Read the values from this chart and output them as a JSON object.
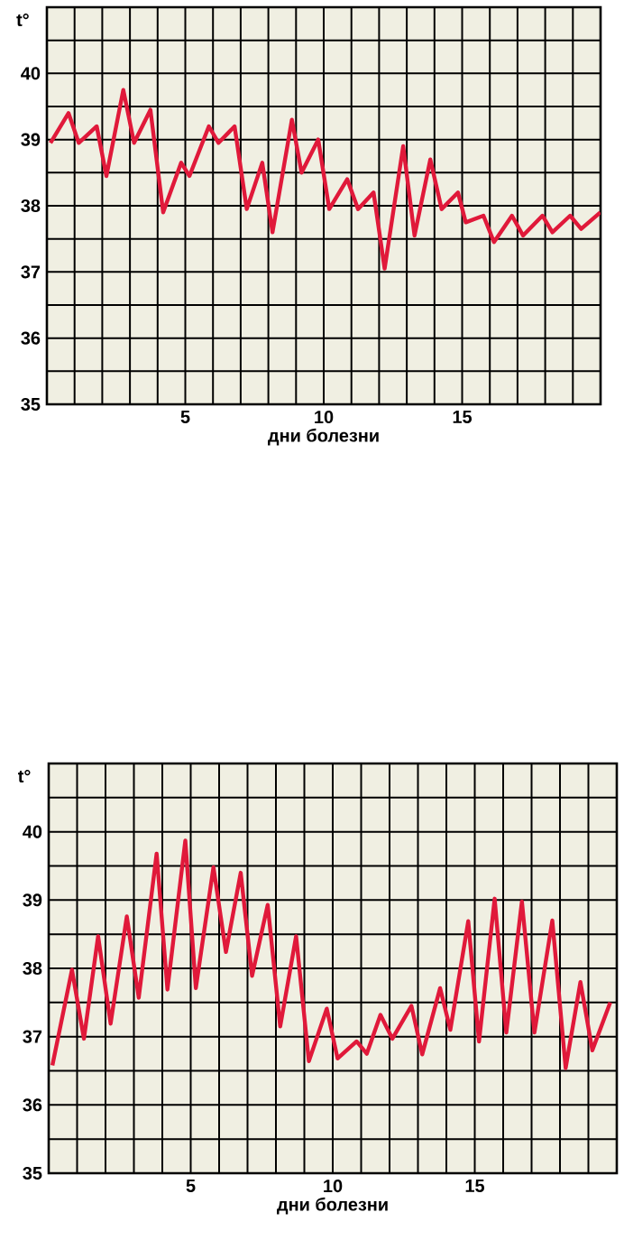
{
  "chart_data": [
    {
      "type": "line",
      "xlabel": "дни болезни",
      "ylabel": "t°",
      "color": "#e0193a",
      "grid": true,
      "xlim": [
        0,
        20
      ],
      "ylim": [
        35,
        41
      ],
      "xticks": [
        {
          "value": 1,
          "label": null
        },
        {
          "value": 2,
          "label": null
        },
        {
          "value": 3,
          "label": null
        },
        {
          "value": 4,
          "label": null
        },
        5,
        {
          "value": 6,
          "label": null
        },
        {
          "value": 7,
          "label": null
        },
        {
          "value": 8,
          "label": null
        },
        {
          "value": 9,
          "label": null
        },
        10,
        {
          "value": 11,
          "label": null
        },
        {
          "value": 12,
          "label": null
        },
        {
          "value": 13,
          "label": null
        },
        {
          "value": 14,
          "label": null
        },
        15,
        {
          "value": 16,
          "label": null
        },
        {
          "value": 17,
          "label": null
        },
        {
          "value": 18,
          "label": null
        },
        {
          "value": 19,
          "label": null
        }
      ],
      "yticks": [
        35,
        {
          "value": 35.5,
          "label": null
        },
        36,
        {
          "value": 36.5,
          "label": null
        },
        37,
        {
          "value": 37.5,
          "label": null
        },
        38,
        {
          "value": 38.5,
          "label": null
        },
        39,
        {
          "value": 39.5,
          "label": null
        },
        40,
        {
          "value": 40.5,
          "label": null
        }
      ],
      "x": [
        0.13,
        0.78,
        1.15,
        1.8,
        2.15,
        2.76,
        3.15,
        3.74,
        4.2,
        4.85,
        5.15,
        5.85,
        6.2,
        6.78,
        7.22,
        7.78,
        8.15,
        8.85,
        9.2,
        9.8,
        10.2,
        10.85,
        11.24,
        11.8,
        12.2,
        12.87,
        13.28,
        13.85,
        14.26,
        14.85,
        15.13,
        15.77,
        16.15,
        16.8,
        17.2,
        17.9,
        18.26,
        18.9,
        19.3,
        19.99
      ],
      "values": [
        38.95,
        39.4,
        38.95,
        39.2,
        38.45,
        39.75,
        38.95,
        39.45,
        37.9,
        38.65,
        38.45,
        39.2,
        38.95,
        39.2,
        37.95,
        38.65,
        37.6,
        39.3,
        38.5,
        39.0,
        37.95,
        38.4,
        37.95,
        38.2,
        37.05,
        38.9,
        37.55,
        38.7,
        37.95,
        38.2,
        37.75,
        37.85,
        37.45,
        37.85,
        37.55,
        37.85,
        37.6,
        37.85,
        37.65,
        37.9
      ]
    },
    {
      "type": "line",
      "xlabel": "дни болезни",
      "ylabel": "t°",
      "color": "#e0193a",
      "grid": true,
      "xlim": [
        0,
        20
      ],
      "ylim": [
        35,
        41
      ],
      "xticks": [
        {
          "value": 1,
          "label": null
        },
        {
          "value": 2,
          "label": null
        },
        {
          "value": 3,
          "label": null
        },
        {
          "value": 4,
          "label": null
        },
        5,
        {
          "value": 6,
          "label": null
        },
        {
          "value": 7,
          "label": null
        },
        {
          "value": 8,
          "label": null
        },
        {
          "value": 9,
          "label": null
        },
        10,
        {
          "value": 11,
          "label": null
        },
        {
          "value": 12,
          "label": null
        },
        {
          "value": 13,
          "label": null
        },
        {
          "value": 14,
          "label": null
        },
        15,
        {
          "value": 16,
          "label": null
        },
        {
          "value": 17,
          "label": null
        },
        {
          "value": 18,
          "label": null
        },
        {
          "value": 19,
          "label": null
        }
      ],
      "yticks": [
        35,
        {
          "value": 35.5,
          "label": null
        },
        36,
        {
          "value": 36.5,
          "label": null
        },
        37,
        {
          "value": 37.5,
          "label": null
        },
        38,
        {
          "value": 38.5,
          "label": null
        },
        39,
        {
          "value": 39.5,
          "label": null
        },
        40,
        {
          "value": 40.5,
          "label": null
        }
      ],
      "x": [
        0.13,
        0.82,
        1.24,
        1.74,
        2.18,
        2.75,
        3.17,
        3.8,
        4.18,
        4.81,
        5.18,
        5.8,
        6.24,
        6.76,
        7.16,
        7.71,
        8.15,
        8.71,
        9.16,
        9.79,
        10.17,
        10.84,
        11.2,
        11.68,
        12.1,
        12.77,
        13.15,
        13.78,
        14.14,
        14.77,
        15.15,
        15.7,
        16.11,
        16.66,
        17.1,
        17.73,
        18.2,
        18.72,
        19.14,
        19.77
      ],
      "values": [
        36.58,
        37.98,
        36.97,
        38.47,
        37.19,
        38.76,
        37.57,
        39.68,
        37.69,
        39.87,
        37.71,
        39.48,
        38.24,
        39.4,
        37.89,
        38.93,
        37.15,
        38.47,
        36.64,
        37.41,
        36.68,
        36.93,
        36.75,
        37.32,
        36.97,
        37.45,
        36.74,
        37.71,
        37.1,
        38.69,
        36.93,
        39.02,
        37.06,
        38.98,
        37.06,
        38.7,
        36.54,
        37.8,
        36.8,
        37.5
      ]
    }
  ]
}
